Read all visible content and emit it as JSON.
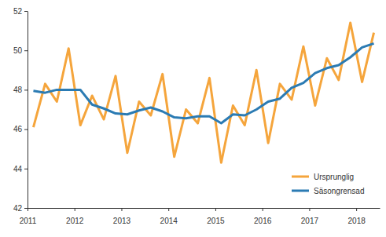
{
  "chart_data": {
    "type": "line",
    "x": [
      2011.125,
      2011.375,
      2011.625,
      2011.875,
      2012.125,
      2012.375,
      2012.625,
      2012.875,
      2013.125,
      2013.375,
      2013.625,
      2013.875,
      2014.125,
      2014.375,
      2014.625,
      2014.875,
      2015.125,
      2015.375,
      2015.625,
      2015.875,
      2016.125,
      2016.375,
      2016.625,
      2016.875,
      2017.125,
      2017.375,
      2017.625,
      2017.875,
      2018.125,
      2018.375
    ],
    "series": [
      {
        "name": "Ursprunglig",
        "color": "#f5a53c",
        "values": [
          46.1,
          48.3,
          47.4,
          50.1,
          46.2,
          47.7,
          46.5,
          48.7,
          44.8,
          47.4,
          46.7,
          48.8,
          44.6,
          47.0,
          46.3,
          48.6,
          44.3,
          47.2,
          46.2,
          49.0,
          45.3,
          48.3,
          47.5,
          50.2,
          47.2,
          49.6,
          48.5,
          51.4,
          48.4,
          50.9
        ]
      },
      {
        "name": "Säsongrensad",
        "color": "#2b7bb3",
        "values": [
          47.95,
          47.85,
          48.0,
          48.0,
          48.0,
          47.25,
          47.05,
          46.8,
          46.75,
          46.95,
          47.1,
          46.9,
          46.6,
          46.55,
          46.65,
          46.65,
          46.3,
          46.75,
          46.7,
          47.0,
          47.4,
          47.55,
          48.1,
          48.35,
          48.85,
          49.1,
          49.25,
          49.65,
          50.15,
          50.35
        ]
      }
    ],
    "xlim": [
      2011,
      2018.5
    ],
    "xticks": [
      2011,
      2012,
      2013,
      2014,
      2015,
      2016,
      2017,
      2018
    ],
    "ylim": [
      42,
      52
    ],
    "yticks": [
      42,
      44,
      46,
      48,
      50,
      52
    ],
    "grid": false,
    "legend": "lower right"
  }
}
